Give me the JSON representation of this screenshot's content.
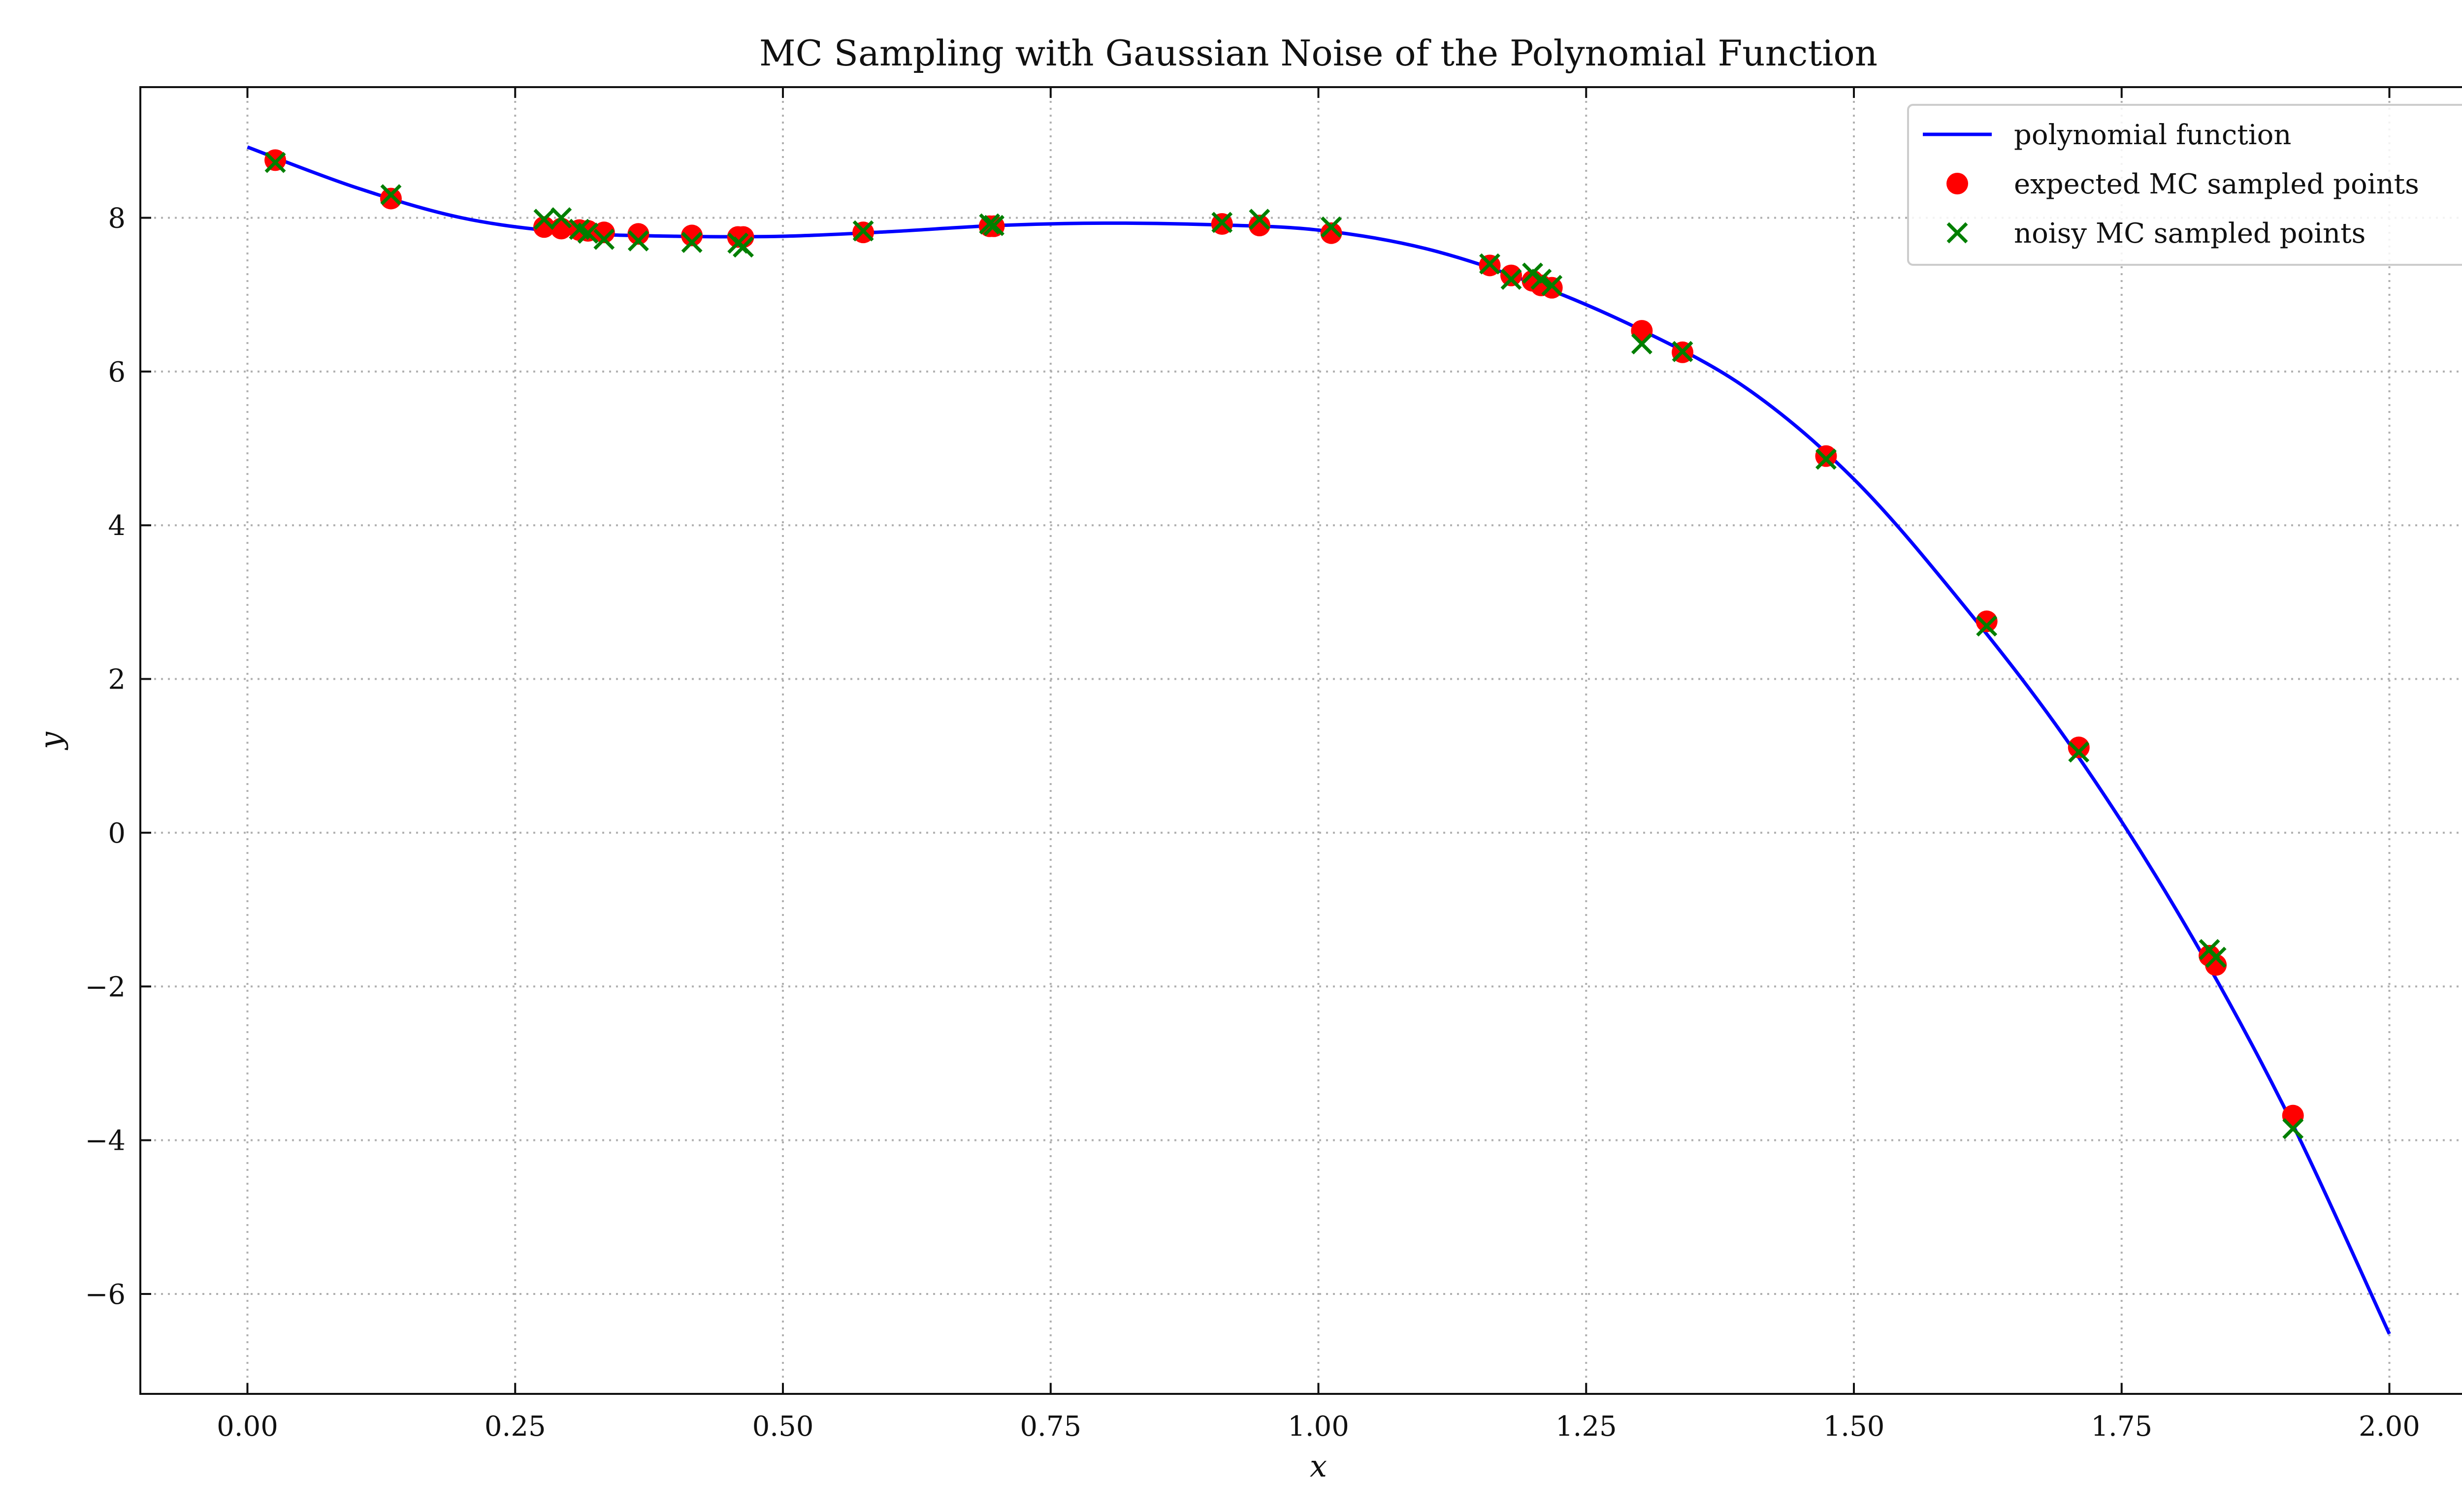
{
  "chart_data": {
    "type": "scatter",
    "title": "MC Sampling with Gaussian Noise of the Polynomial Function",
    "xlabel": "x",
    "ylabel": "y",
    "xlim": [
      -0.1,
      2.1
    ],
    "ylim": [
      -7.3,
      9.7
    ],
    "x_ticks": [
      0.0,
      0.25,
      0.5,
      0.75,
      1.0,
      1.25,
      1.5,
      1.75,
      2.0
    ],
    "x_tick_labels": [
      "0.00",
      "0.25",
      "0.50",
      "0.75",
      "1.00",
      "1.25",
      "1.50",
      "1.75",
      "2.00"
    ],
    "y_ticks": [
      -6,
      -4,
      -2,
      0,
      2,
      4,
      6,
      8
    ],
    "y_tick_labels": [
      "−6",
      "−4",
      "−2",
      "0",
      "2",
      "4",
      "6",
      "8"
    ],
    "grid": true,
    "legend_position": "top-right",
    "series": [
      {
        "name": "polynomial function",
        "kind": "line",
        "color": "#0000ff",
        "x": [
          0.0,
          0.1,
          0.2,
          0.3,
          0.4,
          0.5,
          0.6,
          0.7,
          0.8,
          0.9,
          1.0,
          1.1,
          1.2,
          1.3,
          1.4,
          1.5,
          1.6,
          1.7,
          1.8,
          1.9,
          2.0
        ],
        "y": [
          8.92,
          8.4,
          8.0,
          7.81,
          7.76,
          7.76,
          7.82,
          7.9,
          7.93,
          7.91,
          7.84,
          7.6,
          7.15,
          6.55,
          5.78,
          4.6,
          3.0,
          1.18,
          -0.98,
          -3.52,
          -6.52
        ]
      },
      {
        "name": "expected MC sampled points",
        "kind": "scatter",
        "marker": "circle",
        "color": "#ff0000",
        "x": [
          0.026,
          0.134,
          0.277,
          0.293,
          0.31,
          0.318,
          0.333,
          0.365,
          0.415,
          0.458,
          0.463,
          0.575,
          0.693,
          0.697,
          0.91,
          0.945,
          1.012,
          1.16,
          1.18,
          1.2,
          1.208,
          1.218,
          1.302,
          1.34,
          1.474,
          1.624,
          1.71,
          1.832,
          1.838,
          1.91
        ],
        "y": [
          8.75,
          8.25,
          7.88,
          7.86,
          7.84,
          7.83,
          7.81,
          7.79,
          7.77,
          7.75,
          7.75,
          7.81,
          7.89,
          7.89,
          7.92,
          7.9,
          7.8,
          7.38,
          7.25,
          7.18,
          7.12,
          7.09,
          6.53,
          6.25,
          4.9,
          2.75,
          1.11,
          -1.6,
          -1.72,
          -3.68
        ]
      },
      {
        "name": "noisy MC sampled points",
        "kind": "scatter",
        "marker": "x",
        "color": "#007f00",
        "x": [
          0.026,
          0.134,
          0.277,
          0.293,
          0.31,
          0.318,
          0.333,
          0.365,
          0.415,
          0.458,
          0.463,
          0.575,
          0.693,
          0.697,
          0.91,
          0.945,
          1.012,
          1.16,
          1.18,
          1.2,
          1.208,
          1.218,
          1.302,
          1.34,
          1.474,
          1.624,
          1.71,
          1.832,
          1.838,
          1.91
        ],
        "y": [
          8.72,
          8.3,
          7.98,
          8.0,
          7.85,
          7.8,
          7.72,
          7.7,
          7.68,
          7.67,
          7.62,
          7.83,
          7.92,
          7.9,
          7.94,
          7.98,
          7.88,
          7.4,
          7.2,
          7.28,
          7.2,
          7.12,
          6.36,
          6.26,
          4.86,
          2.69,
          1.05,
          -1.52,
          -1.62,
          -3.85
        ]
      }
    ]
  }
}
